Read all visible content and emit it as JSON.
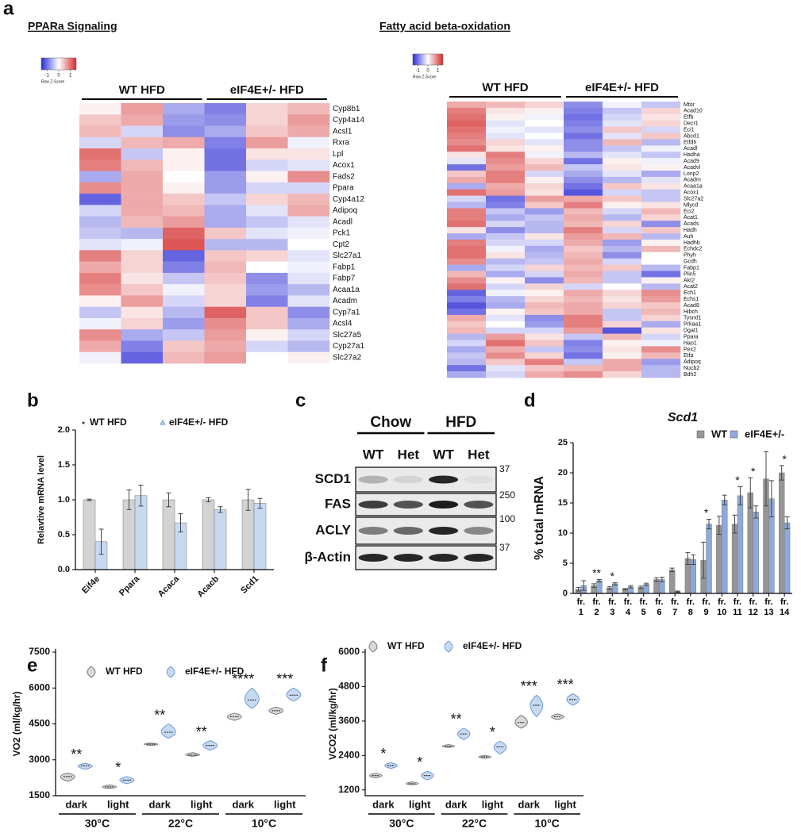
{
  "panel_labels": [
    "a",
    "b",
    "c",
    "d",
    "e",
    "f"
  ],
  "blot": {
    "conditions": [
      "Chow",
      "HFD"
    ],
    "lanes": [
      "WT",
      "Het",
      "WT",
      "Het"
    ],
    "proteins": [
      "SCD1",
      "FAS",
      "ACLY",
      "β-Actin"
    ],
    "markers": [
      "37",
      "250",
      "100",
      "37"
    ]
  },
  "chart_data": [
    {
      "type": "heatmap",
      "title": "PPARa Signaling",
      "groups": [
        "WT HFD",
        "eIF4E+/- HFD"
      ],
      "rows": [
        "Cyp8b1",
        "Cyp4a14",
        "Acsl1",
        "Rxra",
        "Lpl",
        "Acox1",
        "Fads2",
        "Ppara",
        "Cyp4a12",
        "Adipoq",
        "Acadl",
        "Pck1",
        "Cpt2",
        "Slc27a1",
        "Fabp1",
        "Fabp7",
        "Acaa1a",
        "Acadm",
        "Cyp7a1",
        "Acsl4",
        "Slc27a5",
        "Cyp27a1",
        "Slc27a2"
      ],
      "values": [
        [
          0.1,
          0.7,
          -0.6,
          -0.9,
          0.3,
          0.5
        ],
        [
          0.4,
          0.6,
          -0.7,
          -0.8,
          0.3,
          0.7
        ],
        [
          0.5,
          -0.3,
          -0.8,
          -0.6,
          0.4,
          0.6
        ],
        [
          -0.3,
          0.5,
          0.6,
          -0.9,
          0.7,
          -0.1
        ],
        [
          1.0,
          -0.4,
          0.1,
          -1.0,
          0.2,
          0.2
        ],
        [
          0.9,
          0.5,
          0.1,
          -1.0,
          -0.3,
          -0.2
        ],
        [
          -0.6,
          0.6,
          0.0,
          -0.7,
          0.1,
          0.8
        ],
        [
          0.8,
          0.6,
          0.1,
          -0.7,
          -0.3,
          -0.3
        ],
        [
          -1.1,
          0.6,
          0.4,
          -0.4,
          0.3,
          0.5
        ],
        [
          -0.3,
          0.6,
          0.5,
          -0.6,
          -0.2,
          0.6
        ],
        [
          -0.5,
          0.5,
          0.7,
          -0.6,
          -0.4,
          -0.2
        ],
        [
          -0.4,
          -0.5,
          1.1,
          0.4,
          -0.2,
          -0.1
        ],
        [
          -0.2,
          -0.1,
          1.2,
          -0.5,
          -0.5,
          0.0
        ],
        [
          0.9,
          0.3,
          -1.1,
          0.4,
          0.3,
          -0.2
        ],
        [
          0.6,
          0.3,
          -0.9,
          0.5,
          0.0,
          -0.1
        ],
        [
          0.9,
          0.2,
          -0.4,
          0.4,
          -0.8,
          -0.2
        ],
        [
          0.8,
          0.4,
          -0.1,
          0.3,
          -0.7,
          -0.5
        ],
        [
          0.1,
          0.7,
          -0.3,
          0.3,
          -0.9,
          -0.2
        ],
        [
          -0.4,
          0.2,
          -0.5,
          1.1,
          0.4,
          -0.8
        ],
        [
          -0.1,
          0.3,
          -0.7,
          0.8,
          0.4,
          -0.6
        ],
        [
          0.8,
          -0.6,
          -0.4,
          0.7,
          0.1,
          -0.3
        ],
        [
          0.6,
          -0.9,
          0.4,
          0.6,
          -0.3,
          -0.5
        ],
        [
          -0.1,
          -1.1,
          0.5,
          0.7,
          0.0,
          0.1
        ]
      ],
      "zlim": [
        -1.5,
        1.5
      ],
      "zticks": [
        -1,
        0,
        1
      ],
      "colorbar_label": "Row Z-Score",
      "colors": [
        "#2b2bd6",
        "#ffffff",
        "#d42a2a"
      ]
    },
    {
      "type": "heatmap",
      "title": "Fatty acid beta-oxidation",
      "groups": [
        "WT HFD",
        "eIF4E+/- HFD"
      ],
      "rows": [
        "Mtor",
        "Acad10",
        "Etfb",
        "Decr1",
        "Eci1",
        "Abcd1",
        "Etfdh",
        "Acadl",
        "Hadha",
        "Acad9",
        "Acadvl",
        "Lonp2",
        "Acadm",
        "Acaa1a",
        "Acox1",
        "Slc27a2",
        "Mlycd",
        "Eci2",
        "Acat1",
        "Acads",
        "Hadh",
        "Auh",
        "Hadhb",
        "Echdc2",
        "Phyh",
        "Gcdh",
        "Fabp1",
        "Plin5",
        "Akt2",
        "Acat2",
        "Ech1",
        "Echs1",
        "Acad8",
        "Hibch",
        "Tysnd1",
        "Prkaa1",
        "Dgat1",
        "Ppara",
        "Hao1",
        "Pex2",
        "Etfa",
        "Adipoq",
        "Nucb2",
        "Bdh2"
      ],
      "values": [
        [
          0.6,
          0.5,
          0.3,
          -0.8,
          -0.1,
          -0.4
        ],
        [
          0.9,
          0.2,
          0.1,
          -0.9,
          -0.4,
          0.3
        ],
        [
          1.0,
          0.1,
          -0.1,
          -1.0,
          -0.3,
          0.2
        ],
        [
          1.1,
          -0.2,
          0.0,
          -0.9,
          -0.2,
          0.3
        ],
        [
          1.0,
          -0.1,
          -0.2,
          -0.8,
          0.4,
          -0.3
        ],
        [
          0.9,
          -0.2,
          0.0,
          -1.0,
          -0.2,
          0.4
        ],
        [
          0.8,
          0.3,
          -0.2,
          -0.8,
          0.5,
          -0.5
        ],
        [
          1.0,
          0.2,
          0.1,
          -0.8,
          -0.4,
          -0.1
        ],
        [
          0.2,
          0.9,
          -0.1,
          -0.5,
          -0.2,
          -0.4
        ],
        [
          -0.2,
          0.8,
          0.3,
          -1.0,
          0.1,
          -0.1
        ],
        [
          -1.0,
          0.7,
          0.5,
          -0.4,
          0.2,
          0.1
        ],
        [
          0.4,
          0.9,
          -0.3,
          -0.6,
          -0.2,
          -0.6
        ],
        [
          0.6,
          0.9,
          0.1,
          -0.8,
          -0.5,
          -0.2
        ],
        [
          -0.6,
          0.6,
          0.3,
          -1.0,
          0.4,
          0.2
        ],
        [
          1.0,
          0.7,
          0.2,
          -1.2,
          -0.3,
          -0.4
        ],
        [
          -0.3,
          -1.0,
          0.7,
          0.6,
          0.4,
          -0.4
        ],
        [
          -0.5,
          -0.9,
          0.4,
          0.9,
          0.1,
          0.2
        ],
        [
          0.9,
          -0.4,
          -0.7,
          0.5,
          -0.3,
          0.5
        ],
        [
          0.9,
          -0.6,
          -0.4,
          0.6,
          -0.5,
          0.3
        ],
        [
          1.0,
          -0.3,
          -0.5,
          0.5,
          0.3,
          -0.8
        ],
        [
          0.2,
          -0.8,
          -0.5,
          0.9,
          -0.3,
          0.4
        ],
        [
          -0.6,
          -0.4,
          0.2,
          0.7,
          0.5,
          -0.5
        ],
        [
          0.9,
          -0.3,
          -0.3,
          0.6,
          -0.7,
          0.1
        ],
        [
          1.0,
          -0.1,
          -0.6,
          0.4,
          -0.5,
          0.5
        ],
        [
          1.0,
          0.2,
          -0.5,
          0.5,
          -0.8,
          0.0
        ],
        [
          0.8,
          -0.5,
          -0.4,
          0.6,
          -0.3,
          0.0
        ],
        [
          -0.6,
          -0.3,
          0.3,
          0.5,
          0.4,
          -0.5
        ],
        [
          0.5,
          -0.6,
          -0.3,
          0.6,
          -0.4,
          -1.0
        ],
        [
          0.8,
          0.1,
          -0.8,
          0.5,
          -0.4,
          0.1
        ],
        [
          1.0,
          -0.3,
          0.3,
          -0.3,
          0.0,
          -0.5
        ],
        [
          -1.1,
          -0.1,
          0.1,
          0.6,
          0.3,
          0.8
        ],
        [
          -0.9,
          -0.5,
          0.3,
          0.5,
          0.2,
          0.7
        ],
        [
          -1.2,
          -0.6,
          0.5,
          0.6,
          0.3,
          0.4
        ],
        [
          -1.0,
          0.1,
          0.4,
          0.6,
          -0.4,
          0.5
        ],
        [
          0.6,
          -0.2,
          -0.8,
          0.9,
          -0.4,
          0.3
        ],
        [
          0.4,
          0.0,
          -0.7,
          0.9,
          0.3,
          -0.6
        ],
        [
          0.5,
          -0.3,
          -0.3,
          0.7,
          -1.2,
          0.2
        ],
        [
          -0.5,
          0.7,
          0.2,
          -0.4,
          0.5,
          -0.3
        ],
        [
          -0.3,
          1.0,
          0.4,
          -0.9,
          0.1,
          -0.1
        ],
        [
          -0.6,
          0.6,
          -0.4,
          -0.8,
          0.2,
          0.8
        ],
        [
          -0.4,
          0.8,
          0.3,
          -1.0,
          0.1,
          0.5
        ],
        [
          -0.5,
          0.4,
          0.9,
          -0.4,
          0.6,
          -0.7
        ],
        [
          -1.0,
          -0.2,
          0.4,
          0.5,
          0.6,
          -0.5
        ],
        [
          -0.6,
          -0.3,
          0.6,
          0.8,
          0.3,
          -0.5
        ]
      ],
      "zlim": [
        -1.5,
        1.5
      ],
      "zticks": [
        -1,
        0,
        1
      ],
      "colorbar_label": "Row Z-Score",
      "colors": [
        "#2b2bd6",
        "#ffffff",
        "#d42a2a"
      ]
    },
    {
      "type": "bar",
      "ylabel": "Relavtive mRNA level",
      "categories": [
        "Eif4e",
        "Ppara",
        "Acaca",
        "Acacb",
        "Scd1"
      ],
      "series": [
        {
          "name": "WT HFD",
          "color": "#d3d3d3",
          "values": [
            1.0,
            1.0,
            1.0,
            1.0,
            1.0
          ],
          "errors": [
            0.01,
            0.14,
            0.1,
            0.03,
            0.15
          ]
        },
        {
          "name": "eIF4E+/- HFD",
          "color": "#c6d9f0",
          "values": [
            0.4,
            1.06,
            0.67,
            0.86,
            0.95
          ],
          "errors": [
            0.18,
            0.15,
            0.13,
            0.04,
            0.07
          ]
        }
      ],
      "ylim": [
        0,
        2
      ],
      "yticks": [
        {
          "value": 0,
          "label": "0.0"
        },
        {
          "value": 0.5,
          "label": "0.5"
        },
        {
          "value": 1,
          "label": "1.0"
        },
        {
          "value": 1.5,
          "label": "1.5"
        },
        {
          "value": 2,
          "label": "2.0"
        }
      ]
    },
    {
      "type": "bar",
      "title": "Scd1",
      "ylabel": "% total mRNA",
      "categories": [
        "fr. 1",
        "fr. 2",
        "fr. 3",
        "fr. 4",
        "fr. 5",
        "fr. 6",
        "fr. 7",
        "fr. 8",
        "fr. 9",
        "fr. 10",
        "fr. 11",
        "fr. 12",
        "fr. 13",
        "fr. 14"
      ],
      "series": [
        {
          "name": "WT",
          "color": "#969696",
          "values": [
            0.7,
            1.3,
            0.9,
            0.7,
            1.0,
            2.3,
            3.9,
            5.8,
            5.5,
            11.3,
            11.5,
            16.7,
            19.0,
            20.0
          ],
          "errors": [
            0.3,
            0.3,
            0.2,
            0.1,
            0.2,
            0.3,
            0.3,
            1.0,
            3.0,
            1.5,
            1.5,
            2.5,
            4.5,
            1.2
          ]
        },
        {
          "name": "eIF4E+/-",
          "color": "#8eaadb",
          "values": [
            1.3,
            2.1,
            1.6,
            1.1,
            1.5,
            2.3,
            0.3,
            5.6,
            11.5,
            15.5,
            16.2,
            13.5,
            15.7,
            11.7
          ],
          "errors": [
            0.8,
            0.2,
            0.2,
            0.2,
            0.2,
            0.4,
            0.1,
            0.8,
            0.8,
            0.8,
            1.5,
            1.0,
            3.0,
            1.0
          ]
        }
      ],
      "annotations": [
        null,
        "**",
        "*",
        null,
        null,
        null,
        null,
        null,
        "*",
        null,
        "*",
        "*",
        null,
        "*"
      ],
      "ylim": [
        0,
        25
      ],
      "yticks": [
        0,
        5,
        10,
        15,
        20,
        25
      ]
    },
    {
      "type": "violin",
      "ylabel": "VO2 (ml/kg/hr)",
      "categories": [
        "dark",
        "light",
        "dark",
        "light",
        "dark",
        "light"
      ],
      "groups": [
        "30°C",
        "22°C",
        "10°C"
      ],
      "series": [
        {
          "name": "WT HFD",
          "color": "#d9d9d9",
          "values": [
            2300,
            1870,
            3650,
            3200,
            4800,
            5050
          ],
          "mins": [
            2100,
            1800,
            3600,
            3150,
            4650,
            4900
          ],
          "maxs": [
            2450,
            1950,
            3700,
            3300,
            4950,
            5200
          ]
        },
        {
          "name": "eIF4E+/- HFD",
          "color": "#c6d9f0",
          "values": [
            2750,
            2150,
            4150,
            3600,
            5500,
            5700
          ],
          "mins": [
            2600,
            2000,
            3900,
            3400,
            5150,
            5450
          ],
          "maxs": [
            2850,
            2300,
            4500,
            3800,
            6000,
            6000
          ]
        }
      ],
      "annotations": [
        "**",
        "*",
        "**",
        "**",
        "****",
        "***"
      ],
      "ylim": [
        1500,
        7500
      ],
      "yticks": [
        1500,
        3000,
        4500,
        6000,
        7500
      ]
    },
    {
      "type": "violin",
      "ylabel": "VCO2 (ml/kg/hr)",
      "categories": [
        "dark",
        "light",
        "dark",
        "light",
        "dark",
        "light"
      ],
      "groups": [
        "30°C",
        "22°C",
        "10°C"
      ],
      "series": [
        {
          "name": "WT HFD",
          "color": "#d9d9d9",
          "values": [
            1700,
            1420,
            2720,
            2350,
            3550,
            3750
          ],
          "mins": [
            1620,
            1380,
            2680,
            2300,
            3350,
            3650
          ],
          "maxs": [
            1780,
            1480,
            2780,
            2400,
            3800,
            3850
          ]
        },
        {
          "name": "eIF4E+/- HFD",
          "color": "#c6d9f0",
          "values": [
            2050,
            1700,
            3150,
            2700,
            4150,
            4350
          ],
          "mins": [
            1950,
            1550,
            2950,
            2450,
            3750,
            4150
          ],
          "maxs": [
            2150,
            1850,
            3350,
            2900,
            4500,
            4550
          ]
        }
      ],
      "annotations": [
        "*",
        "*",
        "**",
        "*",
        "***",
        "***"
      ],
      "ylim": [
        1000,
        6000
      ],
      "yticks": [
        1200,
        2400,
        3600,
        4800,
        6000
      ]
    }
  ]
}
